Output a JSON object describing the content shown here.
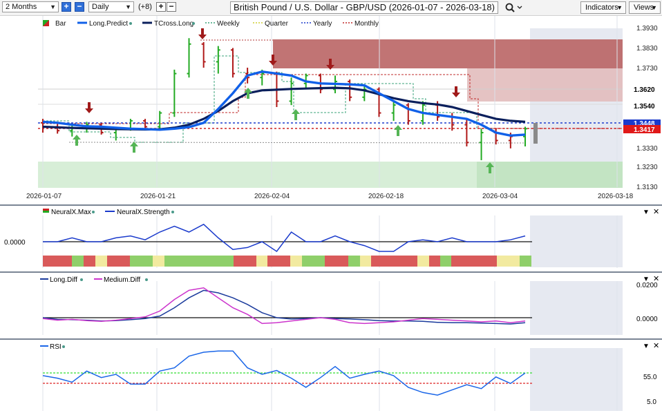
{
  "toolbar": {
    "range": "2 Months",
    "interval": "Daily",
    "count": "(+8)",
    "title": "British Pound / U.S. Dollar - GBP/USD (2026-01-07 - 2026-03-18)",
    "indicators_label": "Indicators",
    "views_label": "Views"
  },
  "main": {
    "legend": {
      "bar": "Bar",
      "long_predict": "Long.Predict",
      "tcross_long": "TCross.Long",
      "weekly": "Weekly",
      "quarter": "Quarter",
      "yearly": "Yearly",
      "monthly": "Monthly"
    },
    "price_labels": [
      "1.3930",
      "1.3830",
      "1.3730",
      "1.3540",
      "1.3330",
      "1.3230",
      "1.3130"
    ],
    "marker_1_3620": "1.3620",
    "marker_1_3540": "1.3540",
    "marker_blue": "1.3448",
    "marker_red": "1.3417",
    "dates": [
      "2026-01-07",
      "2026-01-21",
      "2026-02-04",
      "2026-02-18",
      "2026-03-04",
      "2026-03-18"
    ]
  },
  "neuralx": {
    "legend_max": "NeuralX.Max",
    "legend_strength": "NeuralX.Strength",
    "zero_label": "0.0000"
  },
  "diff": {
    "legend_long": "Long.Diff",
    "legend_medium": "Medium.Diff",
    "label_top": "0.0200",
    "label_zero": "0.0000"
  },
  "rsi": {
    "legend": "RSI",
    "label_55": "55.0",
    "label_5": "5.0"
  },
  "colors": {
    "price_up": "#22aa22",
    "price_down": "#b01818",
    "long_predict": "#1060e8",
    "tcross_long": "#0a1f5c",
    "medium_diff": "#cc33cc",
    "resistance_zone": "#b85858",
    "support_zone": "#cfe9cf"
  },
  "chart_data": [
    {
      "type": "candlestick",
      "title": "British Pound / U.S. Dollar - GBP/USD (2026-01-07 - 2026-03-18)",
      "x_ticks": [
        "2026-01-07",
        "2026-01-21",
        "2026-02-04",
        "2026-02-18",
        "2026-03-04",
        "2026-03-18"
      ],
      "y_ticks": [
        1.393,
        1.383,
        1.373,
        1.354,
        1.333,
        1.323,
        1.313
      ],
      "ylim": [
        1.311,
        1.396
      ],
      "series": [
        {
          "name": "Long.Predict",
          "values": [
            1.3455,
            1.345,
            1.344,
            1.3432,
            1.343,
            1.3425,
            1.342,
            1.3418,
            1.3415,
            1.342,
            1.3428,
            1.345,
            1.352,
            1.36,
            1.369,
            1.371,
            1.37,
            1.369,
            1.366,
            1.365,
            1.3648,
            1.3645,
            1.364,
            1.36,
            1.356,
            1.352,
            1.35,
            1.349,
            1.348,
            1.347,
            1.344,
            1.34,
            1.3385,
            1.339
          ]
        },
        {
          "name": "TCross.Long",
          "values": [
            1.343,
            1.3427,
            1.3424,
            1.3422,
            1.342,
            1.3418,
            1.3417,
            1.3416,
            1.3417,
            1.3425,
            1.344,
            1.347,
            1.351,
            1.356,
            1.36,
            1.3615,
            1.3618,
            1.3622,
            1.3624,
            1.3626,
            1.3628,
            1.3625,
            1.3615,
            1.3595,
            1.3575,
            1.356,
            1.355,
            1.3543,
            1.353,
            1.351,
            1.349,
            1.347,
            1.346,
            1.3455
          ]
        },
        {
          "name": "Yearly",
          "values": [
            1.343
          ]
        },
        {
          "name": "Monthly",
          "values": [
            1.3417
          ]
        }
      ]
    },
    {
      "type": "line",
      "series": [
        {
          "name": "NeuralX.Strength",
          "values": [
            0.0,
            0.0,
            0.2,
            0.0,
            0.0,
            0.2,
            0.3,
            0.1,
            0.5,
            0.8,
            0.5,
            0.9,
            0.2,
            -0.4,
            -0.3,
            0.0,
            -0.5,
            0.5,
            0.0,
            0.0,
            0.3,
            0.0,
            -0.2,
            -0.5,
            -0.5,
            0.0,
            0.1,
            0.0,
            0.2,
            0.0,
            0.0,
            0.0,
            0.1,
            0.3
          ]
        }
      ]
    },
    {
      "type": "line",
      "ylim": [
        -0.008,
        0.022
      ],
      "series": [
        {
          "name": "Long.Diff",
          "values": [
            0.0,
            -0.001,
            -0.0012,
            -0.0015,
            -0.002,
            -0.0018,
            -0.0012,
            -0.0005,
            0.001,
            0.006,
            0.012,
            0.0165,
            0.015,
            0.012,
            0.008,
            0.003,
            0.0,
            -0.0008,
            -0.0005,
            0.0,
            -0.0005,
            -0.0008,
            -0.0012,
            -0.0018,
            -0.002,
            -0.002,
            -0.0022,
            -0.0028,
            -0.003,
            -0.003,
            -0.0032,
            -0.0035,
            -0.0038,
            -0.003
          ]
        },
        {
          "name": "Medium.Diff",
          "values": [
            -0.0005,
            -0.0015,
            -0.001,
            -0.0018,
            -0.0022,
            -0.0015,
            -0.0005,
            0.0005,
            0.004,
            0.011,
            0.0165,
            0.018,
            0.012,
            0.006,
            0.002,
            -0.0035,
            -0.003,
            -0.002,
            -0.001,
            0.0,
            -0.001,
            -0.003,
            -0.0035,
            -0.003,
            -0.0025,
            -0.0015,
            -0.0005,
            -0.001,
            -0.0015,
            -0.002,
            -0.0025,
            -0.002,
            -0.003,
            -0.002
          ]
        }
      ]
    },
    {
      "type": "line",
      "y_ticks": [
        55.0,
        5.0
      ],
      "series": [
        {
          "name": "RSI",
          "values": [
            48,
            44,
            38,
            55,
            45,
            50,
            35,
            35,
            55,
            60,
            78,
            84,
            86,
            86,
            60,
            50,
            56,
            44,
            30,
            45,
            62,
            44,
            50,
            55,
            48,
            30,
            22,
            18,
            26,
            34,
            28,
            46,
            36,
            52
          ]
        }
      ]
    }
  ]
}
